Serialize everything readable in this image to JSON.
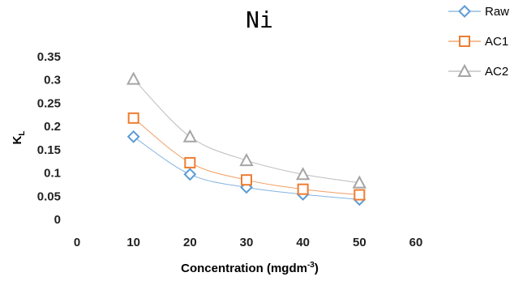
{
  "chart_data": {
    "type": "scatter",
    "title": "Ni",
    "xlabel": "Concentration (mgdm",
    "xlabel_sup": "-3",
    "xlabel_end": ")",
    "ylabel": "K",
    "ylabel_sub": "L",
    "xlim": [
      0,
      60
    ],
    "ylim": [
      0,
      0.35
    ],
    "x_ticks": [
      "0",
      "10",
      "20",
      "30",
      "40",
      "50",
      "60"
    ],
    "y_ticks": [
      "0",
      "0.05",
      "0.1",
      "0.15",
      "0.2",
      "0.25",
      "0.3",
      "0.35"
    ],
    "grid": false,
    "legend_position": "top-right",
    "series": [
      {
        "name": "Raw",
        "marker": "diamond",
        "color": "#5b9bd5",
        "x": [
          10,
          20,
          30,
          40,
          50
        ],
        "y": [
          0.178,
          0.097,
          0.069,
          0.054,
          0.043
        ]
      },
      {
        "name": "AC1",
        "marker": "square",
        "color": "#ed7d31",
        "x": [
          10,
          20,
          30,
          40,
          50
        ],
        "y": [
          0.218,
          0.122,
          0.085,
          0.065,
          0.053
        ]
      },
      {
        "name": "AC2",
        "marker": "triangle",
        "color": "#a5a5a5",
        "x": [
          10,
          20,
          30,
          40,
          50
        ],
        "y": [
          0.302,
          0.178,
          0.127,
          0.097,
          0.079
        ]
      }
    ]
  }
}
